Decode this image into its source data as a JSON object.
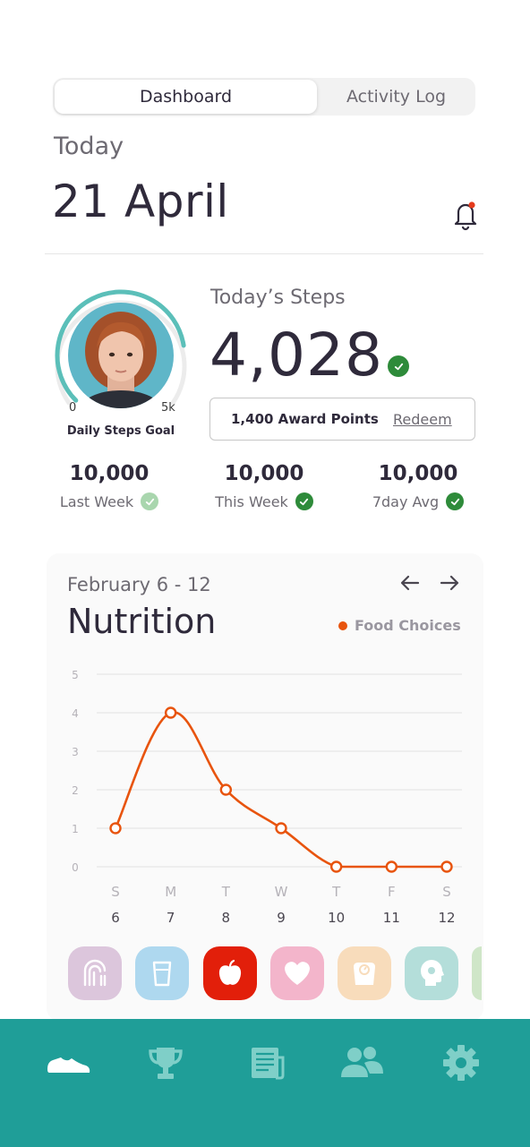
{
  "tabs": {
    "active": "Dashboard",
    "inactive": "Activity Log"
  },
  "header": {
    "today_label": "Today",
    "date": "21 April",
    "notification_badge": true
  },
  "steps": {
    "label": "Today’s Steps",
    "value": "4,028",
    "goal_label": "Daily Steps Goal",
    "ring_min": "0",
    "ring_max": "5k",
    "ring_progress_fraction": 0.8,
    "award_points": "1,400 Award Points",
    "redeem_label": "Redeem"
  },
  "stats": [
    {
      "value": "10,000",
      "label": "Last Week",
      "check": "light"
    },
    {
      "value": "10,000",
      "label": "This Week",
      "check": "green"
    },
    {
      "value": "10,000",
      "label": "7day Avg",
      "check": "green"
    }
  ],
  "nutrition": {
    "range": "February 6 - 12",
    "title": "Nutrition",
    "legend": "Food Choices",
    "categories": [
      "nutrition-icon",
      "water-glass-icon",
      "apple-icon",
      "heart-icon",
      "scale-icon",
      "mind-icon",
      "more-category-icon"
    ]
  },
  "chart_data": {
    "type": "line",
    "x_days": [
      "S",
      "M",
      "T",
      "W",
      "T",
      "F",
      "S"
    ],
    "x_dates": [
      "6",
      "7",
      "8",
      "9",
      "10",
      "11",
      "12"
    ],
    "series": [
      {
        "name": "Food Choices",
        "values": [
          1,
          4,
          2,
          1,
          0,
          0,
          0
        ]
      }
    ],
    "yticks": [
      "0",
      "1",
      "2",
      "3",
      "4",
      "5"
    ],
    "ylim": [
      0,
      5
    ],
    "grid": true,
    "legend_position": "top-right",
    "color": "#e8540e"
  },
  "tab_bar": [
    "sneaker-icon",
    "trophy-icon",
    "newspaper-icon",
    "people-icon",
    "gear-icon"
  ],
  "colors": {
    "accent_teal": "#1f9e98",
    "ring_teal": "#5bbfb9",
    "check_green": "#2e8b3a",
    "chart_orange": "#e8540e"
  }
}
